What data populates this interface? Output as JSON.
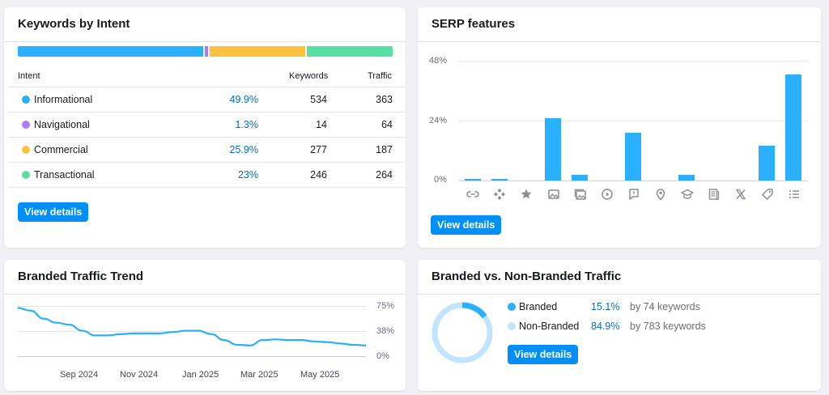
{
  "intent_card": {
    "title": "Keywords by Intent",
    "headers": {
      "intent": "Intent",
      "keywords": "Keywords",
      "traffic": "Traffic"
    },
    "rows": [
      {
        "name": "Informational",
        "pct": "49.9%",
        "keywords": "534",
        "traffic": "363",
        "color": "#2ab0ff",
        "share": 49.9
      },
      {
        "name": "Navigational",
        "pct": "1.3%",
        "keywords": "14",
        "traffic": "64",
        "color": "#b178f7",
        "share": 1.3
      },
      {
        "name": "Commercial",
        "pct": "25.9%",
        "keywords": "277",
        "traffic": "187",
        "color": "#fcc23f",
        "share": 25.9
      },
      {
        "name": "Transactional",
        "pct": "23%",
        "keywords": "246",
        "traffic": "264",
        "color": "#59dfa3",
        "share": 23
      }
    ],
    "button": "View details"
  },
  "serp_card": {
    "title": "SERP features",
    "button": "View details",
    "y_ticks": [
      "48%",
      "24%",
      "0%"
    ],
    "icons": [
      "link-icon",
      "sitelinks-icon",
      "star-icon",
      "image-icon",
      "image-pack-icon",
      "video-icon",
      "feedback-icon",
      "local-pin-icon",
      "education-icon",
      "news-icon",
      "x-twitter-icon",
      "tag-icon",
      "list-icon"
    ]
  },
  "chart_data": [
    {
      "type": "bar",
      "categories": [
        "Link",
        "Sitelinks",
        "Reviews",
        "Image",
        "Image pack",
        "Video",
        "Feedback",
        "Local pack",
        "Knowledge",
        "Top stories",
        "X (Twitter)",
        "Tag",
        "List"
      ],
      "values": [
        0.8,
        0.8,
        0,
        25,
        2.2,
        0,
        19,
        0,
        2.2,
        0,
        0,
        13.8,
        42.5
      ],
      "ylim": [
        0,
        48
      ],
      "y_ticks": [
        "0%",
        "24%",
        "48%"
      ],
      "grid": true,
      "color": "#2ab0ff"
    },
    {
      "type": "line",
      "x_labels": [
        "Sep 2024",
        "Nov 2024",
        "Jan 2025",
        "Mar 2025",
        "May 2025"
      ],
      "values": [
        72,
        68,
        56,
        50,
        47,
        38,
        31,
        31,
        33,
        34,
        34,
        34,
        36,
        38,
        38,
        33,
        24,
        17,
        16,
        24,
        25,
        24,
        24,
        22,
        21,
        19,
        17,
        16
      ],
      "ylim": [
        0,
        75
      ],
      "y_ticks": [
        "75%",
        "38%",
        "0%"
      ],
      "grid": true,
      "color": "#2ab0ff"
    },
    {
      "type": "pie",
      "labels": [
        "Branded",
        "Non-Branded"
      ],
      "values": [
        15.1,
        84.9
      ],
      "colors": [
        "#2ab0ff",
        "#c2e5ff"
      ]
    }
  ],
  "trend_card": {
    "title": "Branded Traffic Trend",
    "x_labels": [
      "Sep 2024",
      "Nov 2024",
      "Jan 2025",
      "Mar 2025",
      "May 2025"
    ],
    "y_ticks": [
      "75%",
      "38%",
      "0%"
    ]
  },
  "branded_card": {
    "title": "Branded vs. Non-Branded Traffic",
    "rows": [
      {
        "label": "Branded",
        "pct": "15.1%",
        "keywords": "by 74 keywords",
        "color": "#2ab0ff"
      },
      {
        "label": "Non-Branded",
        "pct": "84.9%",
        "keywords": "by 783 keywords",
        "color": "#c2e5ff"
      }
    ],
    "button": "View details"
  }
}
